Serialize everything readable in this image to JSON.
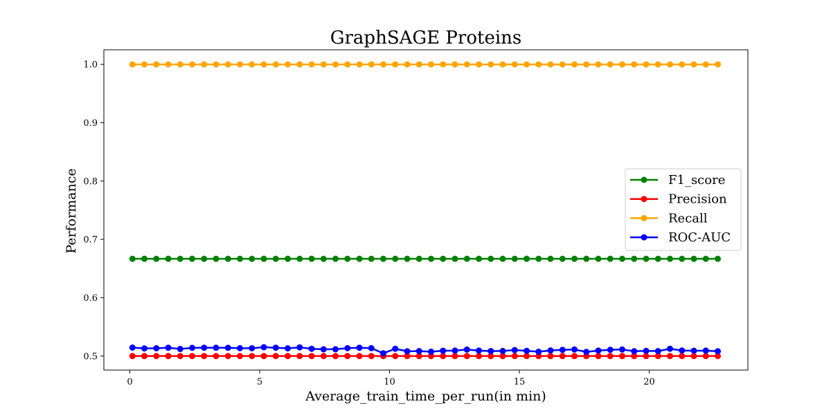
{
  "chart_data": {
    "type": "line",
    "title": "GraphSAGE Proteins",
    "xlabel": "Average_train_time_per_run(in min)",
    "ylabel": "Performance",
    "xlim": [
      -1.0,
      23.8
    ],
    "ylim": [
      0.476,
      1.025
    ],
    "xticks": [
      0,
      5,
      10,
      15,
      20
    ],
    "yticks": [
      0.5,
      0.6,
      0.7,
      0.8,
      0.9,
      1.0
    ],
    "ytick_labels": [
      "0.5",
      "0.6",
      "0.7",
      "0.8",
      "0.9",
      "1.0"
    ],
    "grid": false,
    "legend_position": "center-right",
    "x": [
      0.1,
      0.56,
      1.02,
      1.48,
      1.94,
      2.4,
      2.86,
      3.32,
      3.78,
      4.24,
      4.7,
      5.16,
      5.62,
      6.08,
      6.54,
      7.0,
      7.46,
      7.92,
      8.38,
      8.84,
      9.3,
      9.76,
      10.22,
      10.68,
      11.14,
      11.6,
      12.06,
      12.52,
      12.98,
      13.44,
      13.9,
      14.36,
      14.82,
      15.28,
      15.74,
      16.2,
      16.66,
      17.12,
      17.58,
      18.04,
      18.5,
      18.96,
      19.42,
      19.88,
      20.34,
      20.8,
      21.26,
      21.72,
      22.18,
      22.64
    ],
    "series": [
      {
        "name": "F1_score",
        "color": "#008000",
        "values": [
          0.6667,
          0.6667,
          0.6667,
          0.6667,
          0.6667,
          0.6667,
          0.6667,
          0.6667,
          0.6667,
          0.6667,
          0.6667,
          0.6667,
          0.6667,
          0.6667,
          0.6667,
          0.6667,
          0.6667,
          0.6667,
          0.6667,
          0.6667,
          0.6667,
          0.6667,
          0.6667,
          0.6667,
          0.6667,
          0.6667,
          0.6667,
          0.6667,
          0.6667,
          0.6667,
          0.6667,
          0.6667,
          0.6667,
          0.6667,
          0.6667,
          0.6667,
          0.6667,
          0.6667,
          0.6667,
          0.6667,
          0.6667,
          0.6667,
          0.6667,
          0.6667,
          0.6667,
          0.6667,
          0.6667,
          0.6667,
          0.6667,
          0.6667
        ]
      },
      {
        "name": "Precision",
        "color": "#ff0000",
        "values": [
          0.5,
          0.5,
          0.5,
          0.5,
          0.5,
          0.5,
          0.5,
          0.5,
          0.5,
          0.5,
          0.5,
          0.5,
          0.5,
          0.5,
          0.5,
          0.5,
          0.5,
          0.5,
          0.5,
          0.5,
          0.5,
          0.5,
          0.5,
          0.5,
          0.5,
          0.5,
          0.5,
          0.5,
          0.5,
          0.5,
          0.5,
          0.5,
          0.5,
          0.5,
          0.5,
          0.5,
          0.5,
          0.5,
          0.5,
          0.5,
          0.5,
          0.5,
          0.5,
          0.5,
          0.5,
          0.5,
          0.5,
          0.5,
          0.5,
          0.5
        ]
      },
      {
        "name": "Recall",
        "color": "#ffa500",
        "values": [
          1.0,
          1.0,
          1.0,
          1.0,
          1.0,
          1.0,
          1.0,
          1.0,
          1.0,
          1.0,
          1.0,
          1.0,
          1.0,
          1.0,
          1.0,
          1.0,
          1.0,
          1.0,
          1.0,
          1.0,
          1.0,
          1.0,
          1.0,
          1.0,
          1.0,
          1.0,
          1.0,
          1.0,
          1.0,
          1.0,
          1.0,
          1.0,
          1.0,
          1.0,
          1.0,
          1.0,
          1.0,
          1.0,
          1.0,
          1.0,
          1.0,
          1.0,
          1.0,
          1.0,
          1.0,
          1.0,
          1.0,
          1.0,
          1.0,
          1.0
        ]
      },
      {
        "name": "ROC-AUC",
        "color": "#0000ff",
        "values": [
          0.5145,
          0.5131,
          0.5133,
          0.5143,
          0.5121,
          0.5141,
          0.5143,
          0.5142,
          0.5141,
          0.5135,
          0.5134,
          0.5151,
          0.5143,
          0.5132,
          0.5149,
          0.5125,
          0.5115,
          0.5117,
          0.5135,
          0.5143,
          0.5135,
          0.5047,
          0.5125,
          0.5082,
          0.5085,
          0.5074,
          0.5091,
          0.5093,
          0.5111,
          0.5094,
          0.5085,
          0.5087,
          0.5102,
          0.5089,
          0.5074,
          0.5096,
          0.5106,
          0.5112,
          0.5071,
          0.5094,
          0.5107,
          0.5112,
          0.5083,
          0.5089,
          0.5085,
          0.5125,
          0.5095,
          0.5091,
          0.5093,
          0.5082
        ]
      }
    ]
  }
}
